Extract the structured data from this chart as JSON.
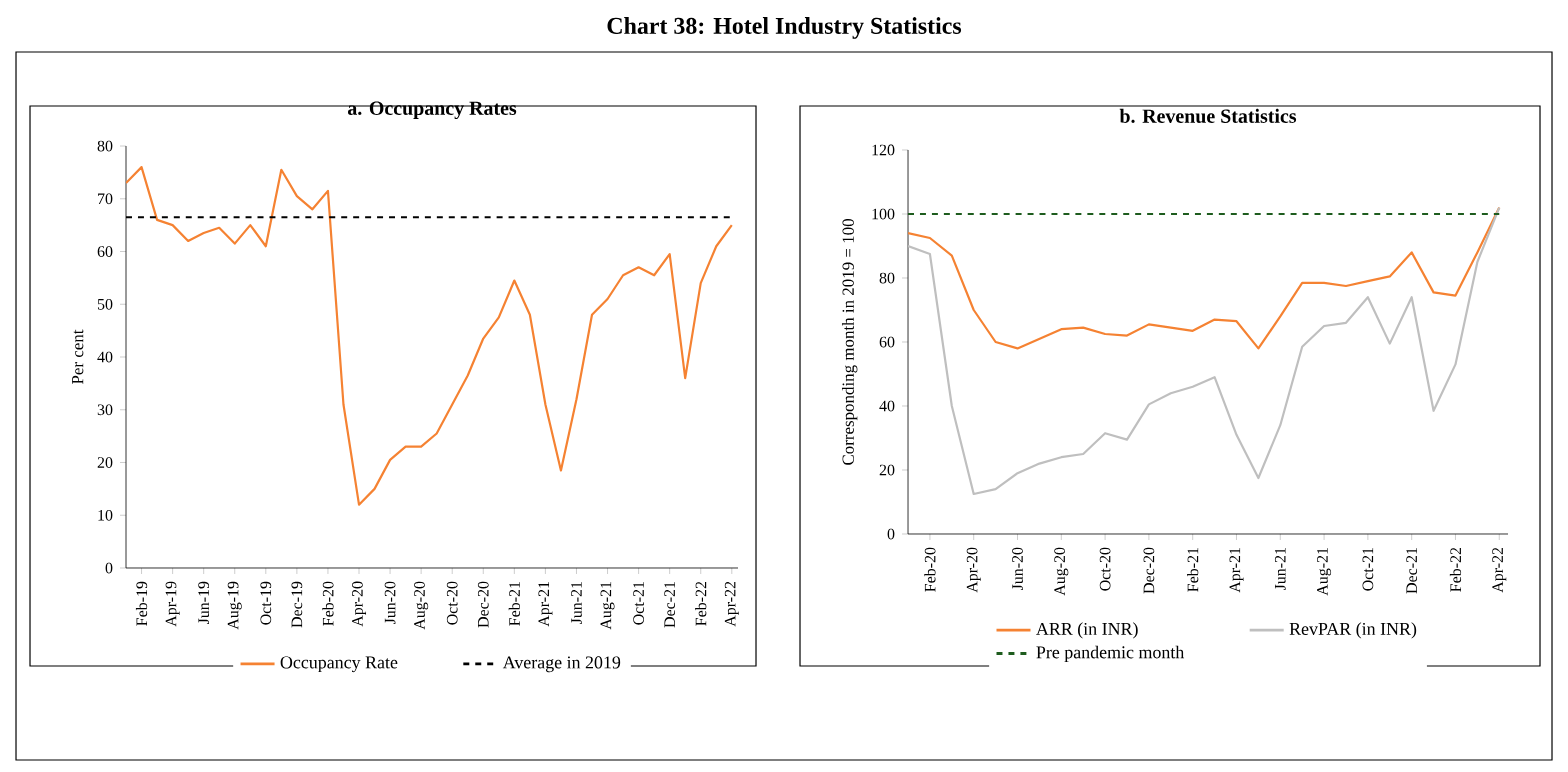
{
  "chart_data": [
    {
      "type": "line",
      "title": "a. Occupancy Rates",
      "ylabel": "Per cent",
      "annotations": [
        "**Chart 38: Hotel Industry Statistics**"
      ],
      "categories": [
        null,
        "Feb-19",
        null,
        "Apr-19",
        null,
        "Jun-19",
        null,
        "Aug-19",
        null,
        "Oct-19",
        null,
        "Dec-19",
        null,
        "Feb-20",
        null,
        "Apr-20",
        null,
        "Jun-20",
        null,
        "Aug-20",
        null,
        "Oct-20",
        null,
        "Dec-20",
        null,
        "Feb-21",
        null,
        "Apr-21",
        null,
        "Jun-21",
        null,
        "Aug-21",
        null,
        "Oct-21",
        null,
        "Dec-21",
        null,
        "Feb-22",
        null,
        "Apr-22"
      ],
      "series": [
        {
          "name": "Occupancy Rate",
          "color": "#f58232",
          "values": [
            73,
            76,
            66,
            65,
            62,
            63.5,
            64.5,
            61.5,
            65,
            61,
            75.5,
            70.5,
            68,
            71.5,
            31,
            12,
            15,
            20.5,
            23,
            23,
            25.5,
            31,
            36.5,
            43.5,
            47.5,
            54.5,
            48,
            31,
            18.5,
            32,
            48,
            51,
            55.5,
            57,
            55.5,
            59.5,
            36,
            54,
            61,
            65
          ]
        }
      ],
      "ylim": [
        0,
        80
      ],
      "yticks": [
        0,
        10,
        20,
        30,
        40,
        50,
        60,
        70,
        80
      ],
      "ref_lines": [
        {
          "axis": "y",
          "value": 66.5,
          "label": "Average in 2019",
          "color": "#000000",
          "line_style": "dashed"
        }
      ],
      "legend": "bottom"
    },
    {
      "type": "line",
      "title": "b. Revenue Statistics",
      "ylabel": "Corresponding month in 2019 = 100",
      "categories": [
        null,
        "Feb-20",
        null,
        "Apr-20",
        null,
        "Jun-20",
        null,
        "Aug-20",
        null,
        "Oct-20",
        null,
        "Dec-20",
        null,
        "Feb-21",
        null,
        "Apr-21",
        null,
        "Jun-21",
        null,
        "Aug-21",
        null,
        "Oct-21",
        null,
        "Dec-21",
        null,
        "Feb-22",
        null,
        "Apr-22"
      ],
      "series": [
        {
          "name": "ARR (in INR)",
          "color": "#f58232",
          "values": [
            94,
            92.5,
            87,
            70,
            60,
            58,
            61,
            64,
            64.5,
            62.5,
            62,
            65.5,
            64.5,
            63.5,
            67,
            66.5,
            58,
            68,
            78.5,
            78.5,
            77.5,
            79,
            80.5,
            88,
            75.5,
            74.5,
            88,
            102
          ]
        },
        {
          "name": "RevPAR (in INR)",
          "color": "#bfbfbf",
          "values": [
            90,
            87.5,
            40,
            12.5,
            14,
            19,
            22,
            24,
            25,
            31.5,
            29.5,
            40.5,
            44,
            46,
            49,
            31,
            17.5,
            34,
            58.5,
            65,
            66,
            74,
            59.5,
            74,
            38.5,
            53,
            85,
            102
          ]
        }
      ],
      "ylim": [
        0,
        120
      ],
      "yticks": [
        0,
        20,
        40,
        60,
        80,
        100,
        120
      ],
      "ref_lines": [
        {
          "axis": "y",
          "value": 100,
          "label": "Pre pandemic month",
          "color": "#1e5c1e",
          "line_style": "dashed"
        }
      ],
      "legend": "bottom"
    }
  ]
}
